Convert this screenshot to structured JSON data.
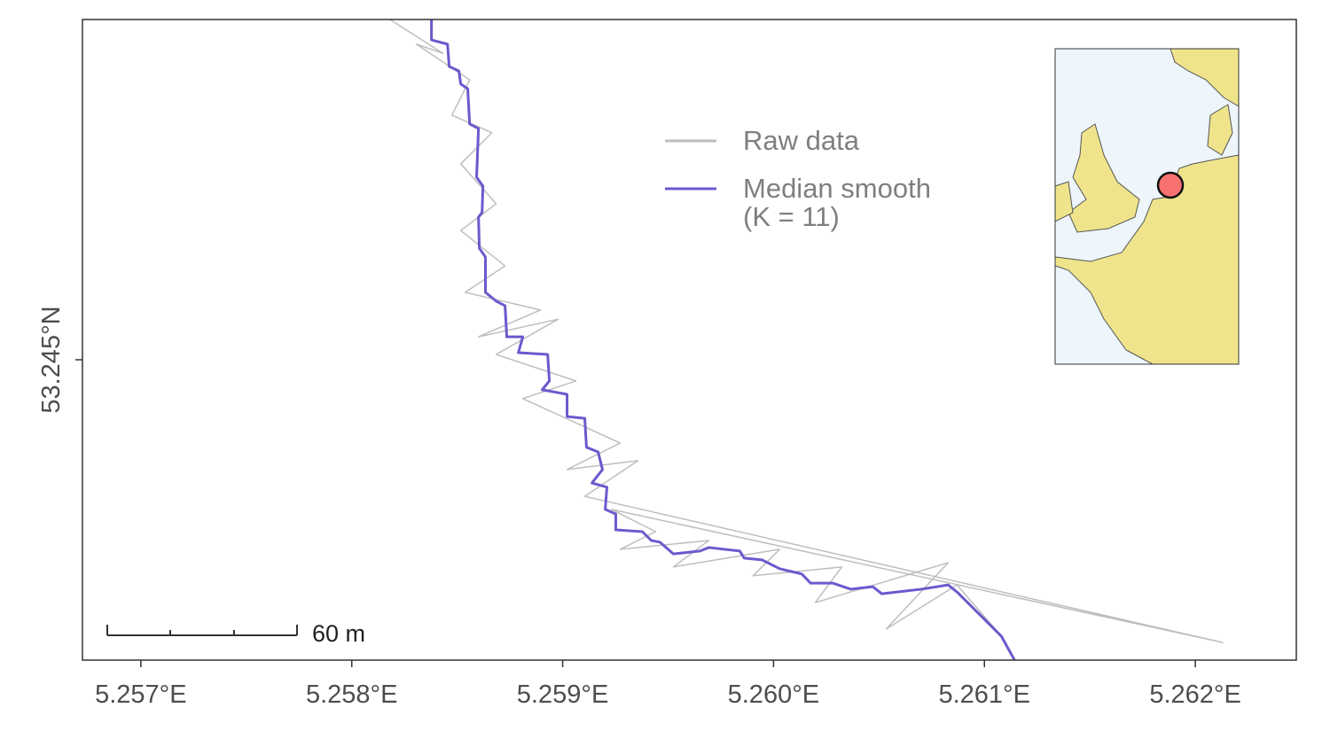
{
  "chart_data": {
    "type": "line",
    "xlim": [
      5.256723,
      5.262479
    ],
    "ylim": [
      53.244149,
      53.245964
    ],
    "xticks": [
      {
        "value": 5.257,
        "label": "5.257°E"
      },
      {
        "value": 5.258,
        "label": "5.258°E"
      },
      {
        "value": 5.259,
        "label": "5.259°E"
      },
      {
        "value": 5.26,
        "label": "5.260°E"
      },
      {
        "value": 5.261,
        "label": "5.261°E"
      },
      {
        "value": 5.262,
        "label": "5.262°E"
      }
    ],
    "yticks": [
      {
        "value": 53.245,
        "label": "53.245°N"
      }
    ],
    "scale_bar": "60 m",
    "series": [
      {
        "name": "Raw data",
        "color": "#bebebe",
        "x": [
          5.258181,
          5.258433,
          5.258307,
          5.258559,
          5.258475,
          5.258664,
          5.258517,
          5.258685,
          5.258517,
          5.258727,
          5.258538,
          5.258895,
          5.258601,
          5.258979,
          5.258685,
          5.259063,
          5.258811,
          5.259273,
          5.259021,
          5.259357,
          5.259105,
          5.26213,
          5.259231,
          5.259441,
          5.259273,
          5.259693,
          5.259525,
          5.260029,
          5.259903,
          5.260324,
          5.260198,
          5.260828,
          5.260534,
          5.26087,
          5.26108
        ],
        "values": [
          53.245964,
          53.245868,
          53.245894,
          53.245793,
          53.245693,
          53.245643,
          53.245555,
          53.245442,
          53.245366,
          53.245266,
          53.245191,
          53.245141,
          53.245065,
          53.245115,
          53.245015,
          53.24494,
          53.24489,
          53.244764,
          53.244689,
          53.244714,
          53.244613,
          53.244199,
          53.244576,
          53.244513,
          53.244463,
          53.244488,
          53.244413,
          53.244463,
          53.244388,
          53.244413,
          53.244312,
          53.244425,
          53.244237,
          53.244362,
          53.244217
        ]
      },
      {
        "name": "Median smooth\n(K = 11)",
        "color": "#6a5acd",
        "x": [
          5.258378,
          5.258378,
          5.258454,
          5.258462,
          5.258508,
          5.258517,
          5.25855,
          5.258559,
          5.258601,
          5.258592,
          5.258622,
          5.258618,
          5.258601,
          5.258605,
          5.258634,
          5.258634,
          5.258685,
          5.258727,
          5.258735,
          5.258811,
          5.25879,
          5.258929,
          5.258937,
          5.258903,
          5.259021,
          5.259021,
          5.259105,
          5.259113,
          5.259168,
          5.259189,
          5.259139,
          5.25921,
          5.259202,
          5.259252,
          5.259252,
          5.259378,
          5.25942,
          5.259462,
          5.259525,
          5.259651,
          5.259693,
          5.25984,
          5.259861,
          5.259945,
          5.260029,
          5.260134,
          5.260176,
          5.260282,
          5.260366,
          5.260471,
          5.260513,
          5.260702,
          5.260828,
          5.26087,
          5.26108,
          5.261143
        ],
        "values": [
          53.245964,
          53.245906,
          53.245894,
          53.245831,
          53.245818,
          53.245781,
          53.245768,
          53.245668,
          53.245655,
          53.245517,
          53.245492,
          53.245417,
          53.245404,
          53.245316,
          53.245291,
          53.245191,
          53.245166,
          53.245153,
          53.245065,
          53.245065,
          53.24502,
          53.245015,
          53.24494,
          53.244915,
          53.244902,
          53.244839,
          53.244834,
          53.244752,
          53.244739,
          53.244689,
          53.244651,
          53.244639,
          53.244576,
          53.244563,
          53.244518,
          53.244513,
          53.244488,
          53.244483,
          53.24445,
          53.244458,
          53.244468,
          53.244458,
          53.244438,
          53.244433,
          53.244408,
          53.244393,
          53.244367,
          53.244367,
          53.24435,
          53.244357,
          53.244337,
          53.24435,
          53.244362,
          53.244342,
          53.244217,
          53.244149
        ]
      }
    ]
  }
}
